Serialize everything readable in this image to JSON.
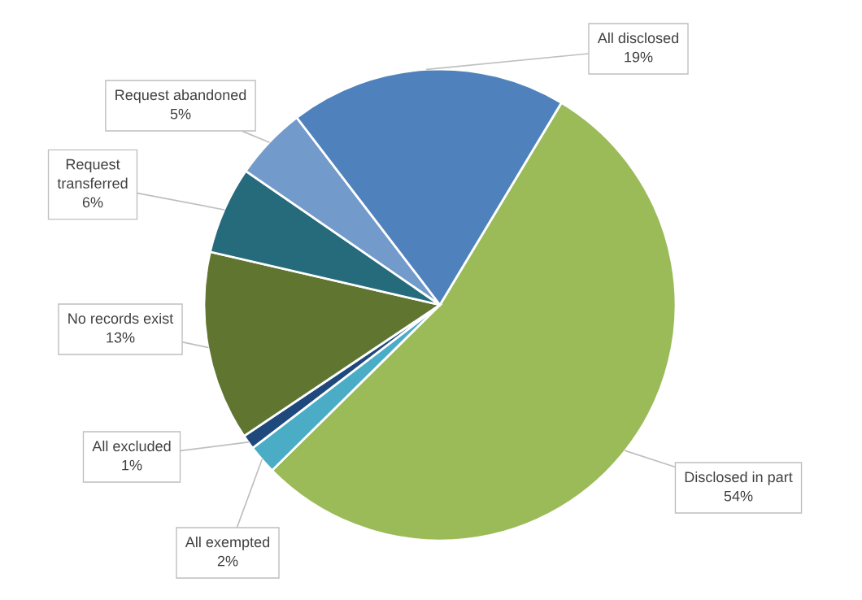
{
  "chart_data": {
    "type": "pie",
    "categories": [
      "Disclosed in part",
      "All exempted",
      "All excluded",
      "No records exist",
      "Request transferred",
      "Request abandoned",
      "All disclosed"
    ],
    "values": [
      54,
      2,
      1,
      13,
      6,
      5,
      19
    ],
    "value_labels": [
      "54%",
      "2%",
      "1%",
      "13%",
      "6%",
      "5%",
      "19%"
    ],
    "colors": [
      "#9bbb59",
      "#4bacc6",
      "#1f497d",
      "#607530",
      "#266b7c",
      "#729aca",
      "#4f81bd"
    ],
    "legend": false
  }
}
